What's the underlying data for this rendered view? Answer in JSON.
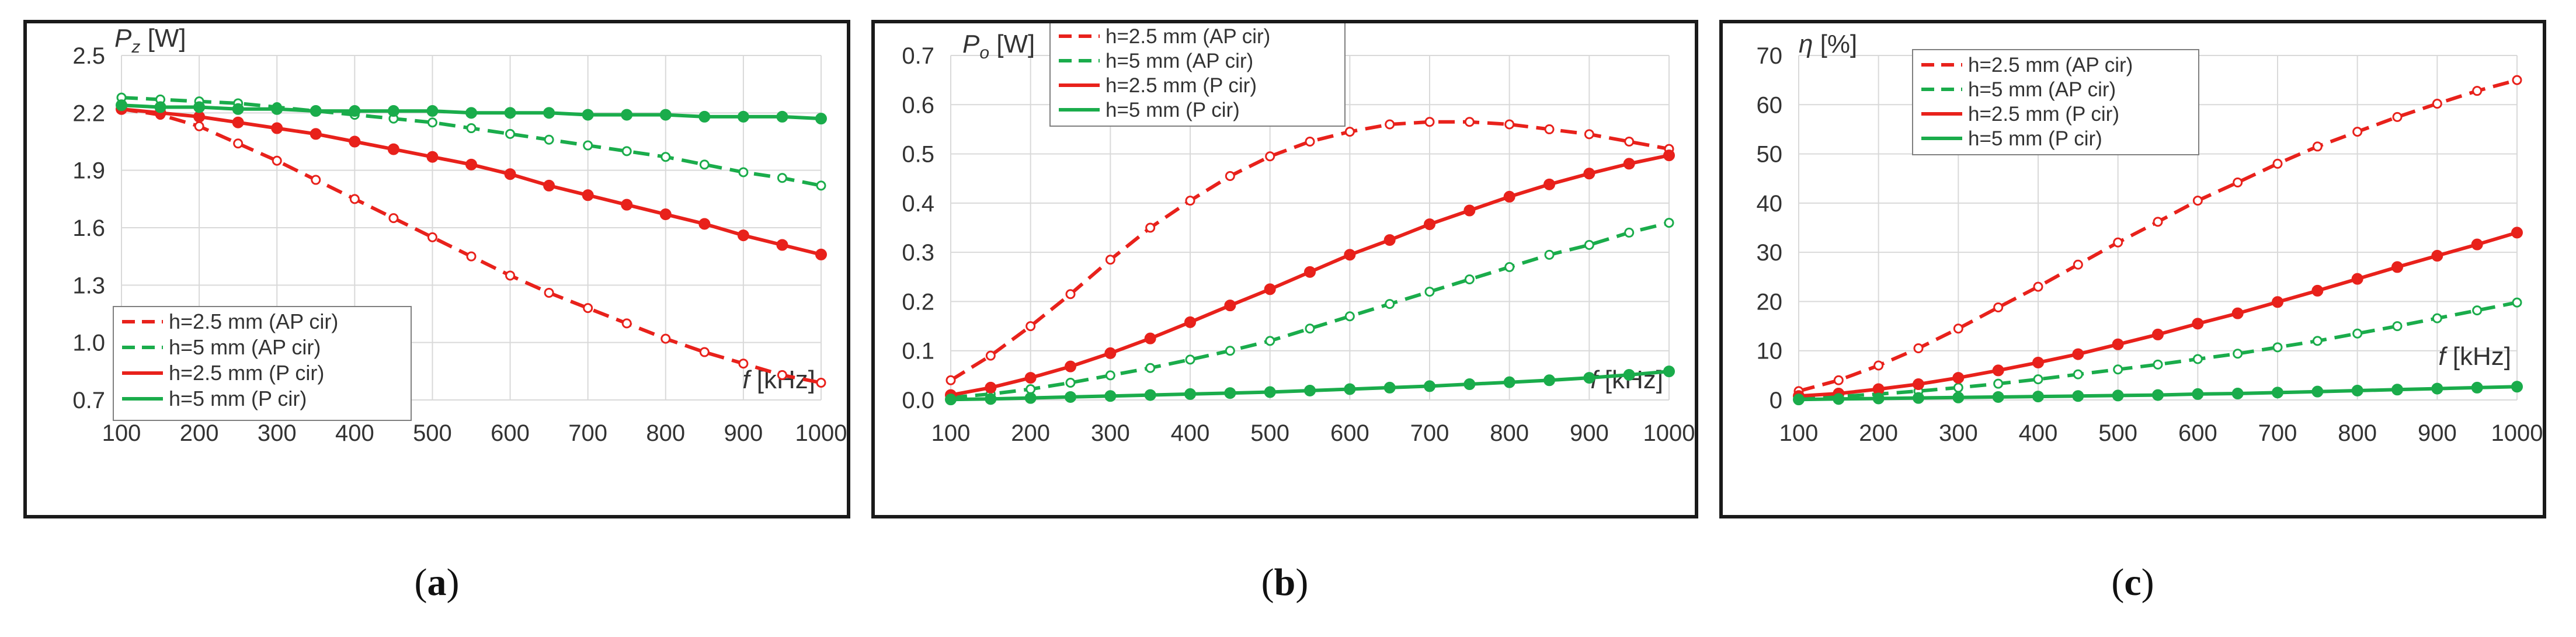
{
  "colors": {
    "red": "#e8211b",
    "green": "#1aac4b",
    "grid": "#d9d9d9",
    "text": "#333333"
  },
  "captions": [
    {
      "open": "(",
      "letter": "a",
      "close": ")"
    },
    {
      "open": "(",
      "letter": "b",
      "close": ")"
    },
    {
      "open": "(",
      "letter": "c",
      "close": ")"
    }
  ],
  "chart_data": [
    {
      "type": "line",
      "title": "",
      "ylabel_sym": "P",
      "ylabel_sub": "z",
      "ylabel_unit": "[W]",
      "xlabel_sym": "f",
      "xlabel_unit": "[kHz]",
      "ylim": [
        0.7,
        2.5
      ],
      "yticks": [
        "0.7",
        "1.0",
        "1.3",
        "1.6",
        "1.9",
        "2.2",
        "2.5"
      ],
      "xlim": [
        100,
        1000
      ],
      "xticks": [
        "100",
        "200",
        "300",
        "400",
        "500",
        "600",
        "700",
        "800",
        "900",
        "1000"
      ],
      "x": [
        100,
        150,
        200,
        250,
        300,
        350,
        400,
        450,
        500,
        550,
        600,
        650,
        700,
        750,
        800,
        850,
        900,
        950,
        1000
      ],
      "legend_order": [
        0,
        1,
        2,
        3
      ],
      "series": [
        {
          "name": "h=2.5 mm (AP cir)",
          "color": "red",
          "dashed": true,
          "marker": "open",
          "values": [
            2.22,
            2.19,
            2.13,
            2.04,
            1.95,
            1.85,
            1.75,
            1.65,
            1.55,
            1.45,
            1.35,
            1.26,
            1.18,
            1.1,
            1.02,
            0.95,
            0.89,
            0.83,
            0.79
          ]
        },
        {
          "name": "h=5 mm (AP cir)",
          "color": "green",
          "dashed": true,
          "marker": "open",
          "values": [
            2.28,
            2.27,
            2.26,
            2.25,
            2.23,
            2.21,
            2.19,
            2.17,
            2.15,
            2.12,
            2.09,
            2.06,
            2.03,
            2.0,
            1.97,
            1.93,
            1.89,
            1.86,
            1.82
          ]
        },
        {
          "name": "h=2.5 mm (P cir)",
          "color": "red",
          "dashed": false,
          "marker": "filled",
          "values": [
            2.22,
            2.2,
            2.18,
            2.15,
            2.12,
            2.09,
            2.05,
            2.01,
            1.97,
            1.93,
            1.88,
            1.82,
            1.77,
            1.72,
            1.67,
            1.62,
            1.56,
            1.51,
            1.46
          ]
        },
        {
          "name": "h=5 mm (P cir)",
          "color": "green",
          "dashed": false,
          "marker": "filled",
          "values": [
            2.24,
            2.23,
            2.23,
            2.22,
            2.22,
            2.21,
            2.21,
            2.21,
            2.21,
            2.2,
            2.2,
            2.2,
            2.19,
            2.19,
            2.19,
            2.18,
            2.18,
            2.18,
            2.17
          ]
        }
      ]
    },
    {
      "type": "line",
      "title": "",
      "ylabel_sym": "P",
      "ylabel_sub": "o",
      "ylabel_unit": "[W]",
      "xlabel_sym": "f",
      "xlabel_unit": "[kHz]",
      "ylim": [
        0.0,
        0.7
      ],
      "yticks": [
        "0.0",
        "0.1",
        "0.2",
        "0.3",
        "0.4",
        "0.5",
        "0.6",
        "0.7"
      ],
      "xlim": [
        100,
        1000
      ],
      "xticks": [
        "100",
        "200",
        "300",
        "400",
        "500",
        "600",
        "700",
        "800",
        "900",
        "1000"
      ],
      "x": [
        100,
        150,
        200,
        250,
        300,
        350,
        400,
        450,
        500,
        550,
        600,
        650,
        700,
        750,
        800,
        850,
        900,
        950,
        1000
      ],
      "legend_order": [
        0,
        1,
        2,
        3
      ],
      "series": [
        {
          "name": "h=2.5 mm (AP cir)",
          "color": "red",
          "dashed": true,
          "marker": "open",
          "values": [
            0.04,
            0.09,
            0.15,
            0.215,
            0.285,
            0.35,
            0.405,
            0.455,
            0.495,
            0.525,
            0.545,
            0.56,
            0.565,
            0.565,
            0.56,
            0.55,
            0.54,
            0.525,
            0.51
          ]
        },
        {
          "name": "h=5 mm (AP cir)",
          "color": "green",
          "dashed": true,
          "marker": "open",
          "values": [
            0.005,
            0.012,
            0.022,
            0.035,
            0.05,
            0.065,
            0.082,
            0.1,
            0.12,
            0.145,
            0.17,
            0.195,
            0.22,
            0.245,
            0.27,
            0.295,
            0.315,
            0.34,
            0.36
          ]
        },
        {
          "name": "h=2.5 mm (P cir)",
          "color": "red",
          "dashed": false,
          "marker": "filled",
          "values": [
            0.01,
            0.025,
            0.045,
            0.068,
            0.095,
            0.125,
            0.158,
            0.192,
            0.225,
            0.26,
            0.295,
            0.325,
            0.357,
            0.385,
            0.413,
            0.438,
            0.46,
            0.48,
            0.497
          ]
        },
        {
          "name": "h=5 mm (P cir)",
          "color": "green",
          "dashed": false,
          "marker": "filled",
          "values": [
            0.001,
            0.002,
            0.004,
            0.006,
            0.008,
            0.01,
            0.012,
            0.014,
            0.016,
            0.019,
            0.022,
            0.025,
            0.028,
            0.032,
            0.036,
            0.04,
            0.045,
            0.051,
            0.058
          ]
        }
      ]
    },
    {
      "type": "line",
      "title": "",
      "ylabel_sym": "η",
      "ylabel_sub": "",
      "ylabel_unit": "[%]",
      "xlabel_sym": "f",
      "xlabel_unit": "[kHz]",
      "ylim": [
        0,
        70
      ],
      "yticks": [
        "0",
        "10",
        "20",
        "30",
        "40",
        "50",
        "60",
        "70"
      ],
      "xlim": [
        100,
        1000
      ],
      "xticks": [
        "100",
        "200",
        "300",
        "400",
        "500",
        "600",
        "700",
        "800",
        "900",
        "1000"
      ],
      "x": [
        100,
        150,
        200,
        250,
        300,
        350,
        400,
        450,
        500,
        550,
        600,
        650,
        700,
        750,
        800,
        850,
        900,
        950,
        1000
      ],
      "legend_order": [
        0,
        1,
        2,
        3
      ],
      "series": [
        {
          "name": "h=2.5 mm (AP cir)",
          "color": "red",
          "dashed": true,
          "marker": "open",
          "values": [
            1.8,
            4.0,
            7.0,
            10.5,
            14.5,
            18.8,
            23.0,
            27.5,
            32.0,
            36.2,
            40.5,
            44.2,
            48.0,
            51.5,
            54.5,
            57.5,
            60.2,
            62.8,
            65.0
          ]
        },
        {
          "name": "h=5 mm (AP cir)",
          "color": "green",
          "dashed": true,
          "marker": "open",
          "values": [
            0.3,
            0.7,
            1.2,
            1.8,
            2.5,
            3.3,
            4.2,
            5.2,
            6.2,
            7.2,
            8.3,
            9.4,
            10.7,
            12.0,
            13.5,
            15.0,
            16.6,
            18.2,
            19.8
          ]
        },
        {
          "name": "h=2.5 mm (P cir)",
          "color": "red",
          "dashed": false,
          "marker": "filled",
          "values": [
            0.8,
            1.3,
            2.2,
            3.2,
            4.5,
            6.0,
            7.6,
            9.3,
            11.3,
            13.3,
            15.5,
            17.6,
            19.9,
            22.2,
            24.6,
            27.0,
            29.3,
            31.6,
            34.0
          ]
        },
        {
          "name": "h=5 mm (P cir)",
          "color": "green",
          "dashed": false,
          "marker": "filled",
          "values": [
            0.1,
            0.2,
            0.3,
            0.4,
            0.5,
            0.6,
            0.7,
            0.8,
            0.9,
            1.0,
            1.2,
            1.3,
            1.5,
            1.7,
            1.9,
            2.1,
            2.3,
            2.5,
            2.7
          ]
        }
      ]
    }
  ]
}
